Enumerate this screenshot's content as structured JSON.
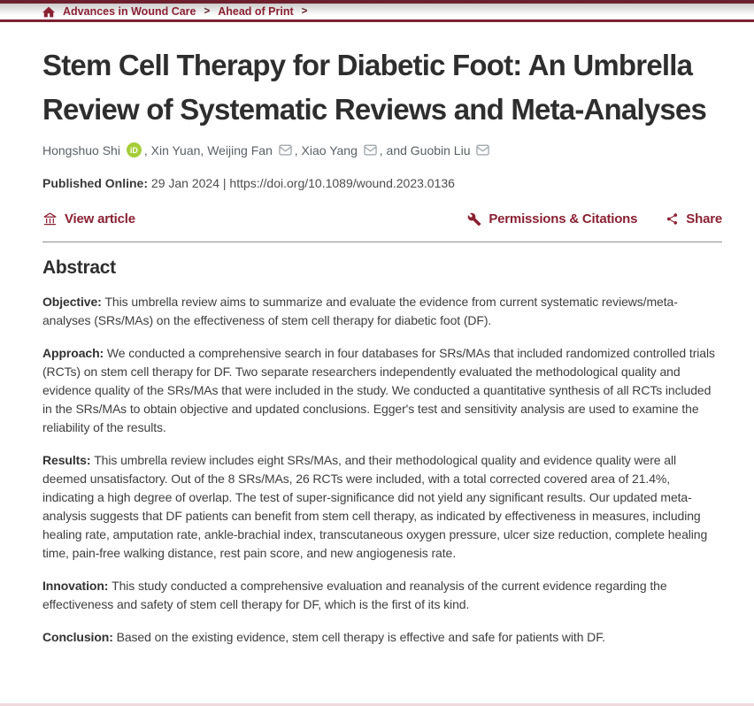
{
  "colors": {
    "maroon_dark": "#6e1f2d",
    "maroon": "#8a2133",
    "orcid_green": "#a6ce39",
    "icon_gray": "#9aa0a6",
    "bottom_strip_pink": "#f0d9dd"
  },
  "breadcrumb": {
    "separator": ">",
    "items": [
      {
        "label": "Advances in Wound Care"
      },
      {
        "label": "Ahead of Print"
      }
    ]
  },
  "article": {
    "title": "Stem Cell Therapy for Diabetic Foot: An Umbrella Review of Systematic Reviews and Meta-Analyses",
    "author_segments": [
      {
        "text": "Hongshuo Shi",
        "icon": "orcid-icon"
      },
      {
        "text": ", Xin Yuan, Weijing Fan",
        "icon": "email-icon"
      },
      {
        "text": ", Xiao Yang",
        "icon": "email-icon"
      },
      {
        "text": ", and Guobin Liu",
        "icon": "email-icon"
      }
    ],
    "orcid_badge_text": "iD",
    "published_label": "Published Online:",
    "published_date": "29 Jan 2024",
    "doi_separator": "|",
    "doi_url": "https://doi.org/10.1089/wound.2023.0136"
  },
  "toolbar": {
    "view_article_label": "View article",
    "permissions_label": "Permissions & Citations",
    "share_label": "Share"
  },
  "abstract": {
    "heading": "Abstract",
    "sections": [
      {
        "label": "Objective:",
        "text": "This umbrella review aims to summarize and evaluate the evidence from current systematic reviews/meta-analyses (SRs/MAs) on the effectiveness of stem cell therapy for diabetic foot (DF)."
      },
      {
        "label": "Approach:",
        "text": "We conducted a comprehensive search in four databases for SRs/MAs that included randomized controlled trials (RCTs) on stem cell therapy for DF. Two separate researchers independently evaluated the methodological quality and evidence quality of the SRs/MAs that were included in the study. We conducted a quantitative synthesis of all RCTs included in the SRs/MAs to obtain objective and updated conclusions. Egger's test and sensitivity analysis are used to examine the reliability of the results."
      },
      {
        "label": "Results:",
        "text": "This umbrella review includes eight SRs/MAs, and their methodological quality and evidence quality were all deemed unsatisfactory. Out of the 8 SRs/MAs, 26 RCTs were included, with a total corrected covered area of 21.4%, indicating a high degree of overlap. The test of super-significance did not yield any significant results. Our updated meta-analysis suggests that DF patients can benefit from stem cell therapy, as indicated by effectiveness in measures, including healing rate, amputation rate, ankle-brachial index, transcutaneous oxygen pressure, ulcer size reduction, complete healing time, pain-free walking distance, rest pain score, and new angiogenesis rate."
      },
      {
        "label": "Innovation:",
        "text": "This study conducted a comprehensive evaluation and reanalysis of the current evidence regarding the effectiveness and safety of stem cell therapy for DF, which is the first of its kind."
      },
      {
        "label": "Conclusion:",
        "text": "Based on the existing evidence, stem cell therapy is effective and safe for patients with DF."
      }
    ]
  }
}
